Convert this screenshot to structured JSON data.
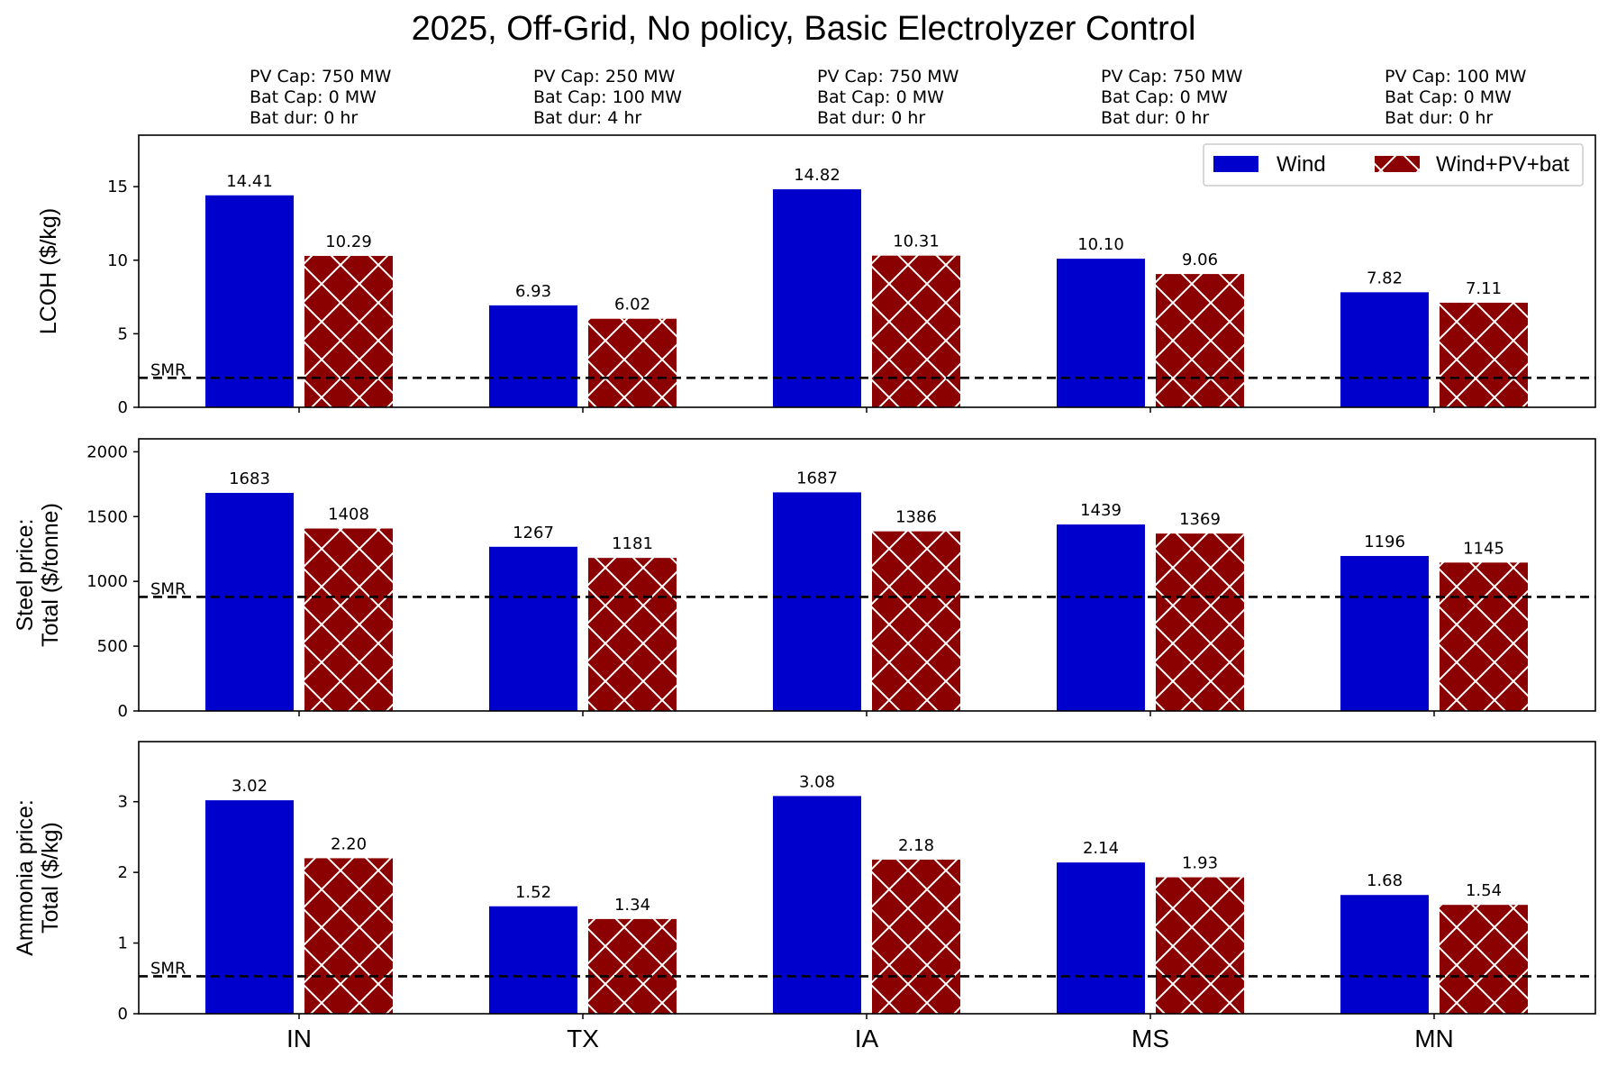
{
  "title": "2025, Off-Grid, No policy, Basic Electrolyzer Control",
  "colors": {
    "wind": "#0000cc",
    "wind_pv_bat": "#8b0000",
    "hatch": "#ffffff",
    "axes": "#000000"
  },
  "configs": [
    {
      "pv": "PV Cap: 750 MW",
      "bat": "Bat Cap: 0 MW",
      "dur": "Bat dur: 0 hr"
    },
    {
      "pv": "PV Cap: 250 MW",
      "bat": "Bat Cap: 100 MW",
      "dur": "Bat dur: 4 hr"
    },
    {
      "pv": "PV Cap: 750 MW",
      "bat": "Bat Cap: 0 MW",
      "dur": "Bat dur: 0 hr"
    },
    {
      "pv": "PV Cap: 750 MW",
      "bat": "Bat Cap: 0 MW",
      "dur": "Bat dur: 0 hr"
    },
    {
      "pv": "PV Cap: 100 MW",
      "bat": "Bat Cap: 0 MW",
      "dur": "Bat dur: 0 hr"
    }
  ],
  "legend": {
    "wind": "Wind",
    "wind_pv_bat": "Wind+PV+bat",
    "placement": "top-right of first panel"
  },
  "smr_label": "SMR",
  "chart_data": [
    {
      "type": "bar",
      "ylabel": [
        "LCOH ($/kg)"
      ],
      "categories": [
        "IN",
        "TX",
        "IA",
        "MS",
        "MN"
      ],
      "ylim": [
        0,
        18.5
      ],
      "yticks": [
        0,
        5,
        10,
        15
      ],
      "smr": 2.0,
      "decimals": 2,
      "series": [
        {
          "name": "Wind",
          "values": [
            14.41,
            6.93,
            14.82,
            10.1,
            7.82
          ]
        },
        {
          "name": "Wind+PV+bat",
          "values": [
            10.29,
            6.02,
            10.31,
            9.06,
            7.11
          ]
        }
      ]
    },
    {
      "type": "bar",
      "ylabel": [
        "Steel price:",
        "Total ($/tonne)"
      ],
      "categories": [
        "IN",
        "TX",
        "IA",
        "MS",
        "MN"
      ],
      "ylim": [
        0,
        2100
      ],
      "yticks": [
        0,
        500,
        1000,
        1500,
        2000
      ],
      "smr": 880,
      "decimals": 0,
      "series": [
        {
          "name": "Wind",
          "values": [
            1683,
            1267,
            1687,
            1439,
            1196
          ]
        },
        {
          "name": "Wind+PV+bat",
          "values": [
            1408,
            1181,
            1386,
            1369,
            1145
          ]
        }
      ]
    },
    {
      "type": "bar",
      "ylabel": [
        "Ammonia price:",
        "Total ($/kg)"
      ],
      "categories": [
        "IN",
        "TX",
        "IA",
        "MS",
        "MN"
      ],
      "ylim": [
        0,
        3.85
      ],
      "yticks": [
        0,
        1,
        2,
        3
      ],
      "smr": 0.53,
      "decimals": 2,
      "series": [
        {
          "name": "Wind",
          "values": [
            3.02,
            1.52,
            3.08,
            2.14,
            1.68
          ]
        },
        {
          "name": "Wind+PV+bat",
          "values": [
            2.2,
            1.34,
            2.18,
            1.93,
            1.54
          ]
        }
      ]
    }
  ]
}
